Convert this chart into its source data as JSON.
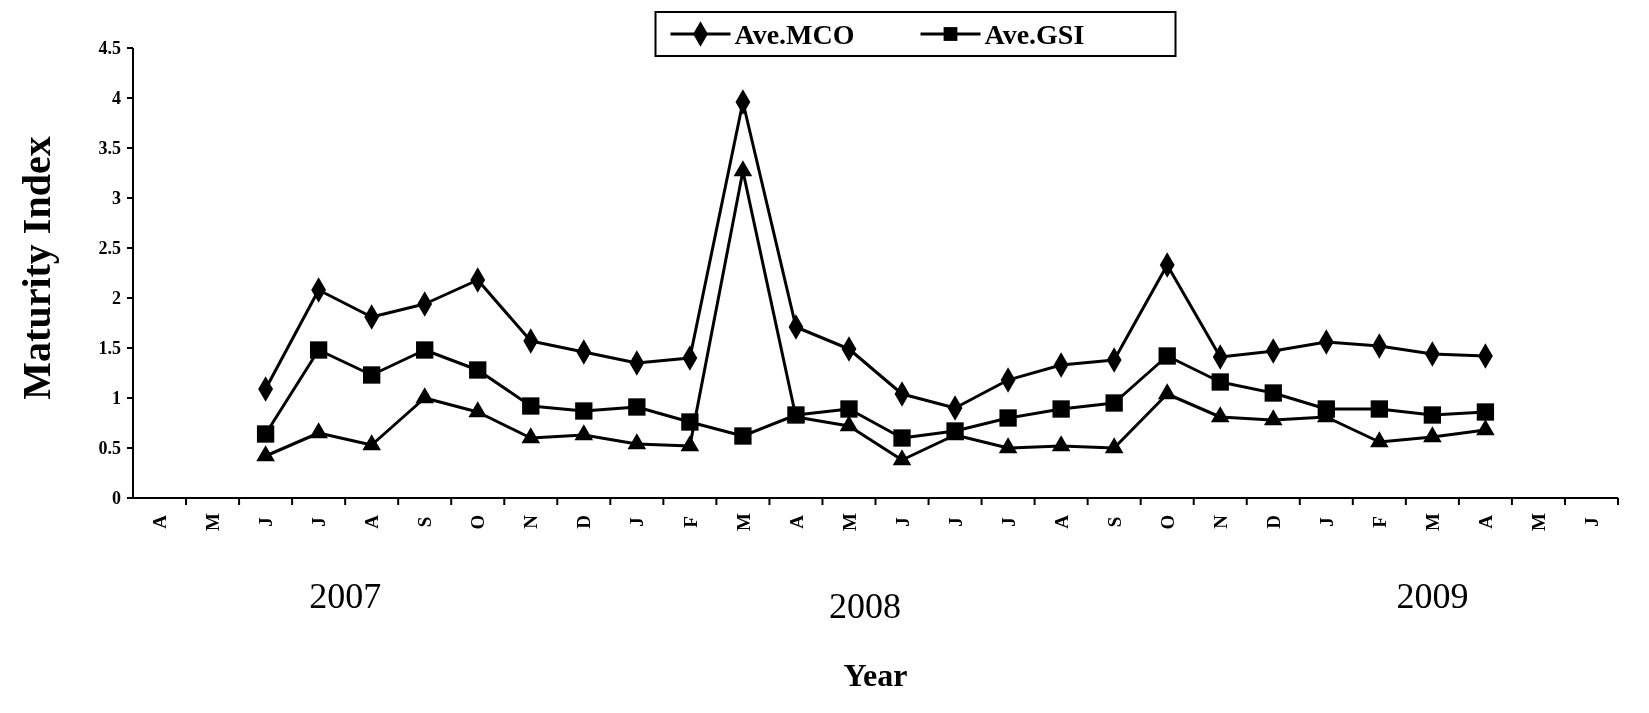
{
  "chart_data": {
    "type": "line",
    "xlabel": "Year",
    "ylabel": "Maturity Index",
    "categories": [
      "A",
      "M",
      "J",
      "J",
      "A",
      "S",
      "O",
      "N",
      "D",
      "J",
      "F",
      "M",
      "A",
      "M",
      "J",
      "J",
      "J",
      "A",
      "S",
      "O",
      "N",
      "D",
      "J",
      "F",
      "M",
      "A",
      "M",
      "J"
    ],
    "ylim": [
      0,
      4.5
    ],
    "yticks": [
      0,
      0.5,
      1,
      1.5,
      2,
      2.5,
      3,
      3.5,
      4,
      4.5
    ],
    "grid": false,
    "legend": "top",
    "line_style": "solid",
    "annotations": [
      "2007",
      "2008",
      "2009"
    ],
    "series": [
      {
        "name": "Ave.MCO",
        "color": "#000000",
        "marker": "diamond",
        "values": [
          null,
          null,
          1.09,
          2.08,
          1.81,
          1.94,
          2.18,
          1.57,
          1.46,
          1.35,
          1.4,
          3.96,
          1.71,
          1.49,
          1.04,
          0.9,
          1.18,
          1.33,
          1.38,
          2.33,
          1.41,
          1.47,
          1.56,
          1.52,
          1.44,
          1.42,
          null,
          null
        ]
      },
      {
        "name": "Ave.GSI",
        "color": "#000000",
        "marker": "square",
        "values": [
          null,
          null,
          0.64,
          1.48,
          1.23,
          1.48,
          1.28,
          0.92,
          0.87,
          0.91,
          0.76,
          0.62,
          0.83,
          0.89,
          0.6,
          0.67,
          0.8,
          0.89,
          0.95,
          1.42,
          1.16,
          1.05,
          0.89,
          0.89,
          0.83,
          0.86,
          null,
          null
        ]
      },
      {
        "color": "#000000",
        "marker": "triangle",
        "values": [
          null,
          null,
          0.42,
          0.65,
          0.53,
          1.0,
          0.86,
          0.6,
          0.63,
          0.54,
          0.52,
          3.27,
          0.81,
          0.72,
          0.38,
          0.63,
          0.5,
          0.52,
          0.5,
          1.04,
          0.81,
          0.78,
          0.81,
          0.56,
          0.61,
          0.68,
          null,
          null
        ]
      }
    ]
  }
}
